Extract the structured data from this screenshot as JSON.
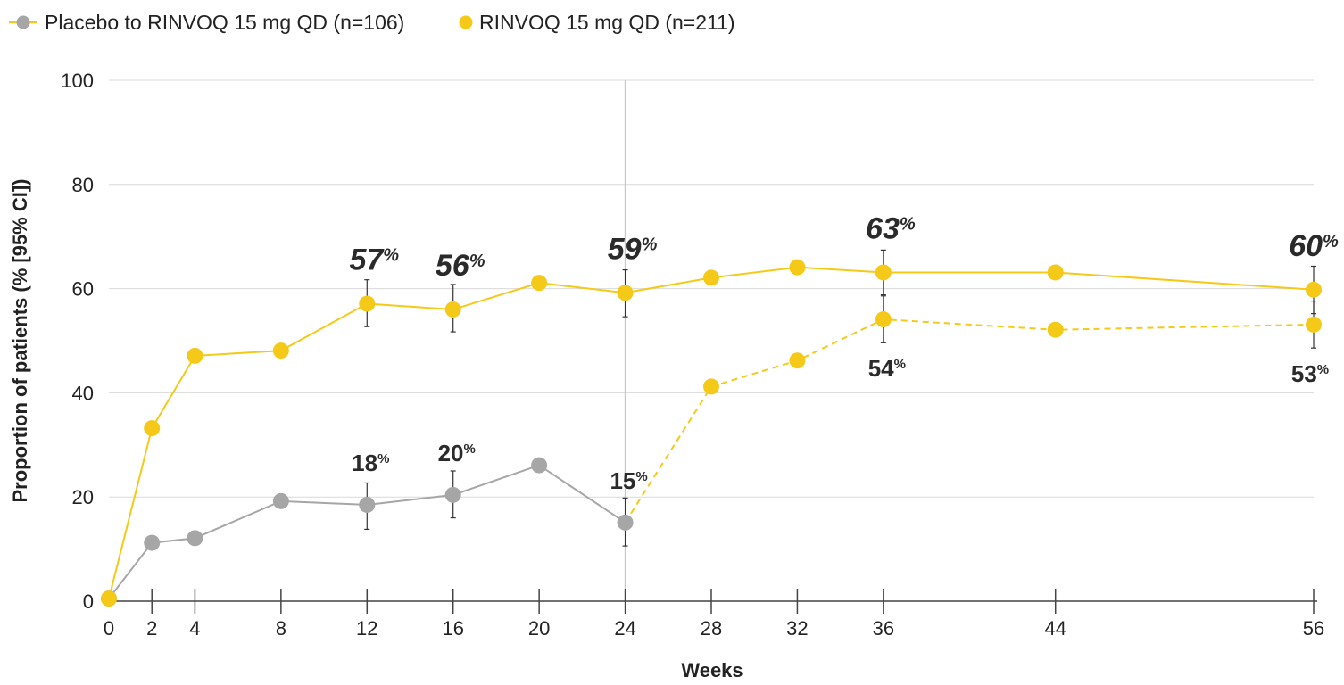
{
  "chart_data": {
    "type": "line",
    "xlabel": "Weeks",
    "ylabel": "Proportion of patients (% [95% CI])",
    "ylim": [
      0,
      100
    ],
    "yticks": [
      0,
      20,
      40,
      60,
      80,
      100
    ],
    "xticks": [
      0,
      2,
      4,
      8,
      12,
      16,
      20,
      24,
      28,
      32,
      36,
      44,
      56
    ],
    "xlim": [
      0,
      56
    ],
    "grid": true,
    "reference_line_x": 24,
    "legend_position": "top-left",
    "colors": {
      "placebo": "#a6a6a6",
      "rinvoq": "#f5c918",
      "axis": "#444444",
      "grid": "#d9d9d9",
      "text": "#222222"
    },
    "series": [
      {
        "key": "placebo",
        "name": "Placebo to RINVOQ 15 mg QD (n=106)",
        "points": [
          {
            "x": 0,
            "y": 0.5
          },
          {
            "x": 2,
            "y": 11.2
          },
          {
            "x": 4,
            "y": 12.1
          },
          {
            "x": 8,
            "y": 19.2
          },
          {
            "x": 12,
            "y": 18.5,
            "ci": [
              13.8,
              22.7
            ]
          },
          {
            "x": 16,
            "y": 20.4,
            "ci": [
              16.0,
              25.0
            ]
          },
          {
            "x": 20,
            "y": 26.1
          },
          {
            "x": 24,
            "y": 15.1,
            "ci": [
              10.6,
              19.8
            ]
          }
        ]
      },
      {
        "key": "rinvoq",
        "name": "RINVOQ 15 mg QD (n=211)",
        "points": [
          {
            "x": 0,
            "y": 0.5
          },
          {
            "x": 2,
            "y": 33.2
          },
          {
            "x": 4,
            "y": 47.1
          },
          {
            "x": 8,
            "y": 48.1
          },
          {
            "x": 12,
            "y": 57.1,
            "ci": [
              52.7,
              61.7
            ]
          },
          {
            "x": 16,
            "y": 56.0,
            "ci": [
              51.7,
              60.8
            ]
          },
          {
            "x": 20,
            "y": 61.1
          },
          {
            "x": 24,
            "y": 59.2,
            "ci": [
              54.6,
              63.6
            ]
          },
          {
            "x": 28,
            "y": 62.1
          },
          {
            "x": 32,
            "y": 64.1
          },
          {
            "x": 36,
            "y": 63.1,
            "ci": [
              58.8,
              67.4
            ]
          },
          {
            "x": 44,
            "y": 63.1
          },
          {
            "x": 56,
            "y": 59.8,
            "ci": [
              55.2,
              64.3
            ]
          }
        ]
      },
      {
        "key": "switch",
        "name": "Placebo to RINVOQ 15 mg QD (n=106)",
        "dashed": true,
        "points": [
          {
            "x": 24,
            "y": 15.1
          },
          {
            "x": 28,
            "y": 41.2
          },
          {
            "x": 32,
            "y": 46.2
          },
          {
            "x": 36,
            "y": 54.1,
            "ci": [
              49.6,
              58.6
            ]
          },
          {
            "x": 44,
            "y": 52.1
          },
          {
            "x": 56,
            "y": 53.1,
            "ci": [
              48.6,
              57.6
            ]
          }
        ]
      }
    ],
    "annotations": [
      {
        "x": 12,
        "y": 57.1,
        "value": "57",
        "style": "italic"
      },
      {
        "x": 16,
        "y": 56.0,
        "value": "56",
        "style": "italic"
      },
      {
        "x": 24,
        "y": 59.2,
        "value": "59",
        "style": "italic"
      },
      {
        "x": 36,
        "y": 63.1,
        "value": "63",
        "style": "italic"
      },
      {
        "x": 56,
        "y": 59.8,
        "value": "60",
        "style": "italic"
      },
      {
        "x": 12,
        "y": 18.5,
        "value": "18",
        "style": "bold-above"
      },
      {
        "x": 16,
        "y": 20.4,
        "value": "20",
        "style": "bold-above"
      },
      {
        "x": 24,
        "y": 15.1,
        "value": "15",
        "style": "bold-above"
      },
      {
        "x": 36,
        "y": 54.1,
        "value": "54",
        "style": "bold-below"
      },
      {
        "x": 56,
        "y": 53.1,
        "value": "53",
        "style": "bold-below"
      }
    ],
    "percent_sign": "%"
  }
}
